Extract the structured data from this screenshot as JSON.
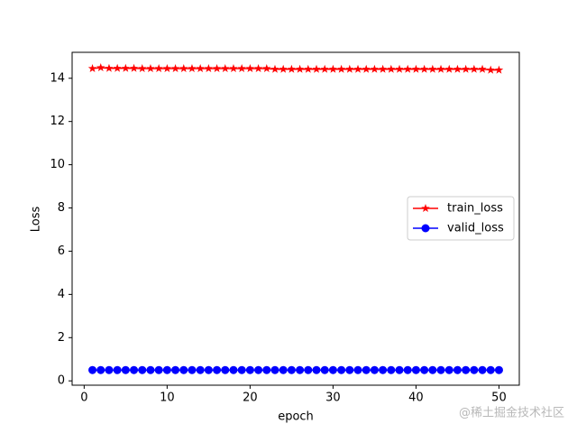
{
  "chart_data": {
    "type": "line",
    "x_label": "epoch",
    "y_label": "Loss",
    "x": [
      1,
      2,
      3,
      4,
      5,
      6,
      7,
      8,
      9,
      10,
      11,
      12,
      13,
      14,
      15,
      16,
      17,
      18,
      19,
      20,
      21,
      22,
      23,
      24,
      25,
      26,
      27,
      28,
      29,
      30,
      31,
      32,
      33,
      34,
      35,
      36,
      37,
      38,
      39,
      40,
      41,
      42,
      43,
      44,
      45,
      46,
      47,
      48,
      49,
      50
    ],
    "series": [
      {
        "name": "train_loss",
        "color": "#ff0000",
        "marker": "star",
        "values": [
          14.45,
          14.49,
          14.46,
          14.46,
          14.46,
          14.46,
          14.45,
          14.45,
          14.45,
          14.45,
          14.45,
          14.45,
          14.45,
          14.45,
          14.45,
          14.45,
          14.45,
          14.45,
          14.45,
          14.45,
          14.45,
          14.45,
          14.42,
          14.42,
          14.42,
          14.42,
          14.42,
          14.42,
          14.42,
          14.42,
          14.42,
          14.42,
          14.42,
          14.42,
          14.42,
          14.42,
          14.42,
          14.42,
          14.42,
          14.42,
          14.42,
          14.42,
          14.42,
          14.42,
          14.42,
          14.42,
          14.42,
          14.42,
          14.38,
          14.38
        ]
      },
      {
        "name": "valid_loss",
        "color": "#0000ff",
        "marker": "circle",
        "values": [
          0.5,
          0.5,
          0.5,
          0.5,
          0.5,
          0.5,
          0.5,
          0.5,
          0.5,
          0.5,
          0.5,
          0.5,
          0.5,
          0.5,
          0.5,
          0.5,
          0.5,
          0.5,
          0.5,
          0.5,
          0.5,
          0.5,
          0.5,
          0.5,
          0.5,
          0.5,
          0.5,
          0.5,
          0.5,
          0.5,
          0.5,
          0.5,
          0.5,
          0.5,
          0.5,
          0.5,
          0.5,
          0.5,
          0.5,
          0.5,
          0.5,
          0.5,
          0.5,
          0.5,
          0.5,
          0.5,
          0.5,
          0.5,
          0.5,
          0.5
        ]
      }
    ],
    "xlim": [
      -1.45,
      52.45
    ],
    "xticks": [
      0,
      10,
      20,
      30,
      40,
      50
    ],
    "ylim": [
      -0.2,
      15.2
    ],
    "yticks": [
      0,
      2,
      4,
      6,
      8,
      10,
      12,
      14
    ],
    "legend": "right",
    "grid": false
  },
  "watermark": "@稀土掘金技术社区"
}
